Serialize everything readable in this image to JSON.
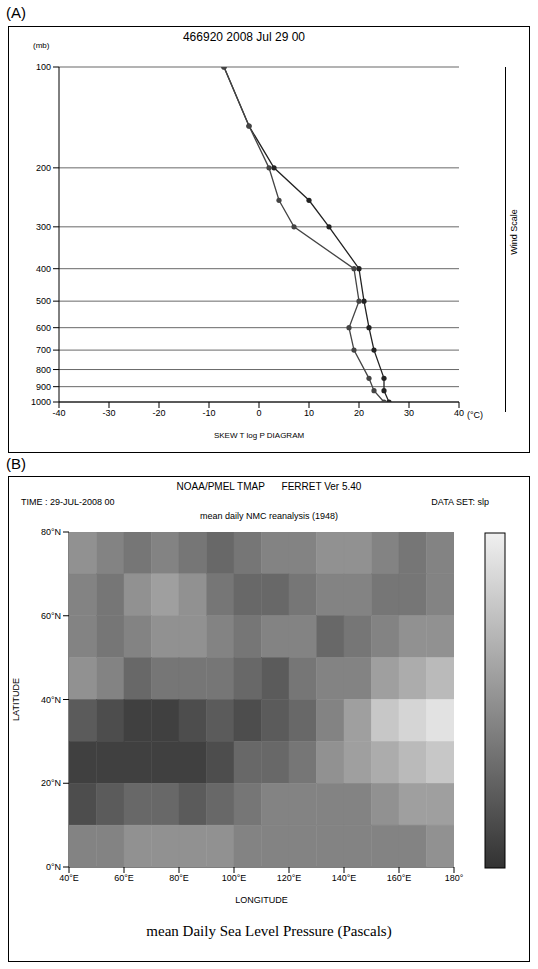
{
  "chart_data": [
    {
      "panel": "(A)",
      "type": "line",
      "title": "466920 2008 Jul 29 00",
      "xlabel": "SKEW T log P DIAGRAM",
      "x_unit": "(°C)",
      "ylabel": "(mb)",
      "side_label": "Wind Scale",
      "log": "y",
      "grid": true,
      "xlim": [
        -40,
        40
      ],
      "xticks": [
        -40,
        -30,
        -20,
        -10,
        0,
        10,
        20,
        30,
        40
      ],
      "ylim": [
        100,
        1000
      ],
      "yticks": [
        100,
        200,
        300,
        400,
        500,
        600,
        700,
        800,
        900,
        1000
      ],
      "series": [
        {
          "color": "#222222",
          "marker": "circle",
          "x": [
            26,
            25,
            25,
            23,
            22,
            21,
            20,
            14,
            10,
            3,
            -2,
            -7
          ],
          "y": [
            1000,
            925,
            850,
            700,
            600,
            500,
            400,
            300,
            250,
            200,
            150,
            100
          ]
        },
        {
          "color": "#444444",
          "marker": "circle",
          "x": [
            25,
            23,
            22,
            19,
            18,
            20,
            19,
            7,
            4,
            2,
            -2,
            -7
          ],
          "y": [
            1000,
            925,
            850,
            700,
            600,
            500,
            400,
            300,
            250,
            200,
            150,
            100
          ]
        }
      ]
    },
    {
      "panel": "(B)",
      "type": "heatmap",
      "header": [
        "NOAA/PMEL TMAP",
        "FERRET Ver 5.40"
      ],
      "time": "TIME : 29-JUL-2008 00",
      "dataset": "DATA SET: slp",
      "title": "mean daily NMC reanalysis (1948)",
      "xlabel": "LONGITUDE",
      "ylabel": "LATITUDE",
      "caption": "mean Daily Sea Level Pressure (Pascals)",
      "xlim": [
        40,
        180
      ],
      "xticks": [
        {
          "value": 40,
          "label": "40°E"
        },
        {
          "value": 60,
          "label": "60°E"
        },
        {
          "value": 80,
          "label": "80°E"
        },
        {
          "value": 100,
          "label": "100°E"
        },
        {
          "value": 120,
          "label": "120°E"
        },
        {
          "value": 140,
          "label": "140°E"
        },
        {
          "value": 160,
          "label": "160°E"
        },
        {
          "value": 180,
          "label": "180°"
        }
      ],
      "ylim": [
        0,
        80
      ],
      "yticks": [
        {
          "value": 0,
          "label": "0°N"
        },
        {
          "value": 20,
          "label": "20°N"
        },
        {
          "value": 40,
          "label": "40°N"
        },
        {
          "value": 60,
          "label": "60°N"
        },
        {
          "value": 80,
          "label": "80°N"
        }
      ],
      "x": [
        45,
        55,
        65,
        75,
        85,
        95,
        105,
        115,
        125,
        135,
        145,
        155,
        165,
        175
      ],
      "y": [
        75,
        65,
        55,
        45,
        35,
        25,
        15,
        5
      ],
      "values": [
        [
          101000,
          100800,
          100600,
          100800,
          100600,
          100400,
          100600,
          100800,
          100800,
          101000,
          101000,
          100800,
          100600,
          100800
        ],
        [
          100800,
          100600,
          101000,
          101200,
          101000,
          100600,
          100400,
          100400,
          100600,
          100800,
          100800,
          100600,
          100600,
          100800
        ],
        [
          100800,
          100600,
          100800,
          101000,
          101000,
          100800,
          100600,
          100800,
          100800,
          100400,
          100600,
          100800,
          101000,
          101000
        ],
        [
          101000,
          100800,
          100400,
          100600,
          100600,
          100600,
          100400,
          100200,
          100600,
          100800,
          100800,
          101200,
          101400,
          101600
        ],
        [
          100200,
          100000,
          99800,
          99800,
          100000,
          100200,
          100000,
          100200,
          100400,
          100800,
          101200,
          101800,
          102000,
          102200
        ],
        [
          99800,
          99800,
          99800,
          99800,
          99800,
          100000,
          100400,
          100400,
          100600,
          101000,
          101200,
          101400,
          101600,
          101800
        ],
        [
          100000,
          100200,
          100400,
          100400,
          100200,
          100400,
          100600,
          100800,
          100800,
          100800,
          100800,
          101000,
          101200,
          101200
        ],
        [
          100800,
          100800,
          101000,
          101000,
          101000,
          101000,
          100800,
          100800,
          100800,
          100800,
          100800,
          100800,
          100800,
          101000
        ]
      ],
      "colorbar_range": [
        99600,
        102400
      ]
    }
  ]
}
